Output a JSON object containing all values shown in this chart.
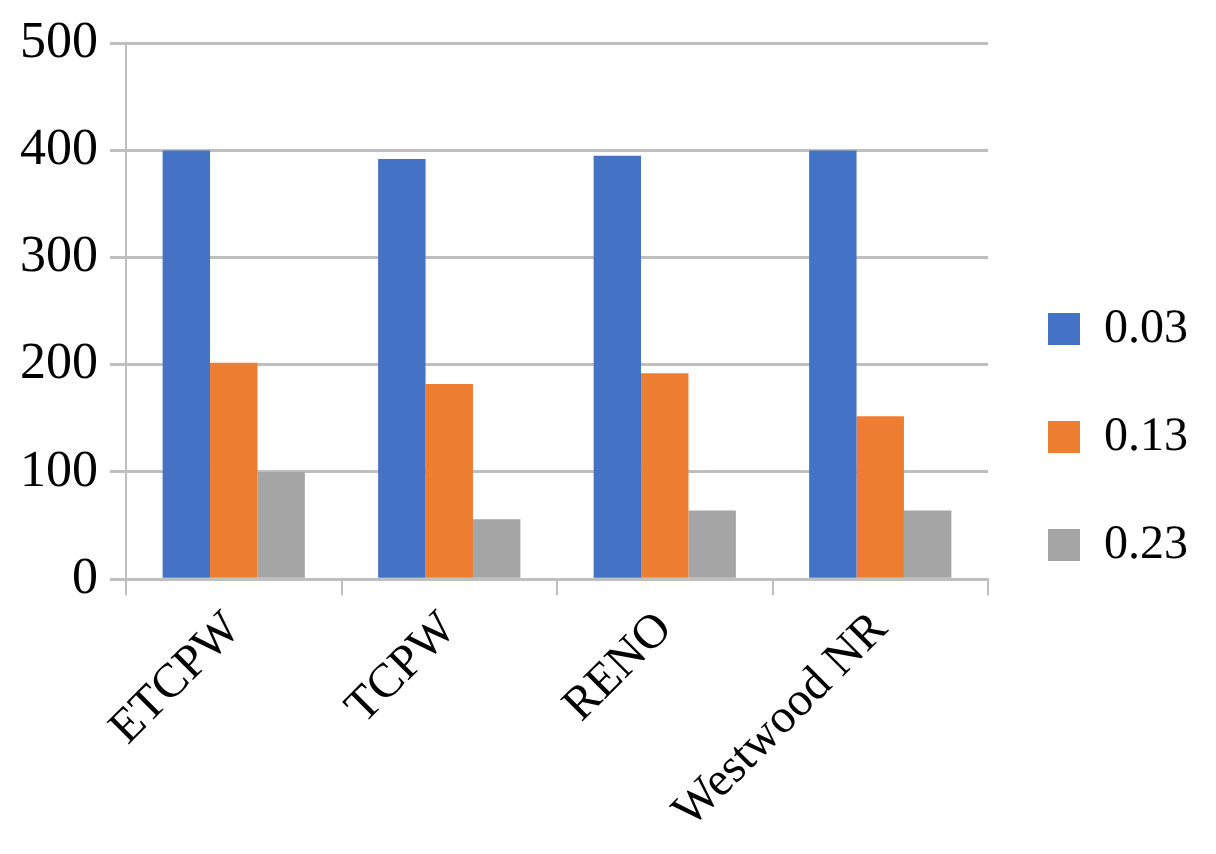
{
  "chart_data": {
    "type": "bar",
    "categories": [
      "ETCPW",
      "TCPW",
      "RENO",
      "Westwood NR"
    ],
    "series": [
      {
        "name": "0.03",
        "color": "#4472c4",
        "values": [
          400,
          392,
          395,
          400
        ]
      },
      {
        "name": "0.13",
        "color": "#ed7d31",
        "values": [
          202,
          182,
          192,
          152
        ]
      },
      {
        "name": "0.23",
        "color": "#a5a5a5",
        "values": [
          100,
          56,
          64,
          64
        ]
      }
    ],
    "ylim": [
      0,
      500
    ],
    "yticks": [
      0,
      100,
      200,
      300,
      400,
      500
    ],
    "grid": "y",
    "legend": "right"
  }
}
